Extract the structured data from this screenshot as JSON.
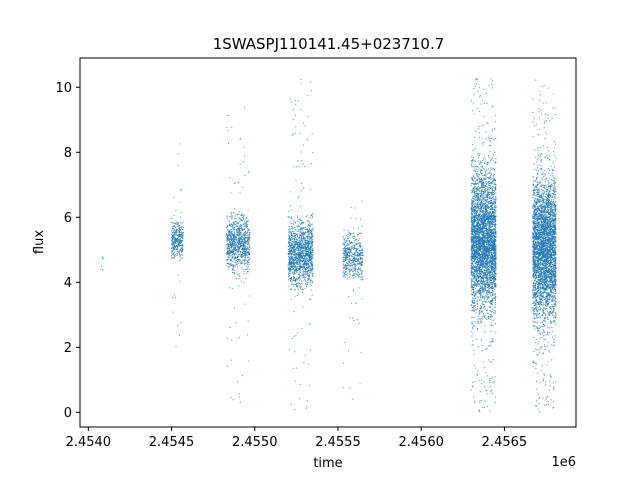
{
  "chart_data": {
    "type": "scatter",
    "title": "1SWASPJ110141.45+023710.7",
    "xlabel": "time",
    "ylabel": "flux",
    "x_offset_label": "1e6",
    "xlim": [
      2.45395,
      2.45693
    ],
    "ylim": [
      -0.45,
      10.9
    ],
    "x_ticks": [
      2.454,
      2.4545,
      2.455,
      2.4555,
      2.456,
      2.4565
    ],
    "x_tick_labels": [
      "2.4540",
      "2.4545",
      "2.4550",
      "2.4555",
      "2.4560",
      "2.4565"
    ],
    "y_ticks": [
      0,
      2,
      4,
      6,
      8,
      10
    ],
    "y_tick_labels": [
      "0",
      "2",
      "4",
      "6",
      "8",
      "10"
    ],
    "grid": false,
    "marker_color": "#1f77b4",
    "series": [
      {
        "x_range_start": [
          2.45408,
          2.4545,
          2.45483,
          2.4552,
          2.45553,
          2.4563,
          2.45667
        ],
        "x_range_end": [
          2.45409,
          2.45457,
          2.45497,
          2.45535,
          2.45565,
          2.45645,
          2.45681
        ],
        "center_flux": [
          4.5,
          5.3,
          5.2,
          4.9,
          4.8,
          5.3,
          5.0
        ],
        "flux_spread": [
          0.4,
          0.4,
          0.6,
          0.7,
          0.5,
          1.5,
          1.5
        ],
        "flux_min": [
          3.9,
          1.9,
          0.3,
          0.0,
          0.2,
          0.0,
          0.0
        ],
        "flux_max": [
          5.0,
          8.3,
          9.5,
          10.3,
          6.6,
          10.3,
          10.3
        ],
        "point_count": [
          6,
          350,
          900,
          1400,
          500,
          4000,
          3800
        ]
      }
    ]
  }
}
